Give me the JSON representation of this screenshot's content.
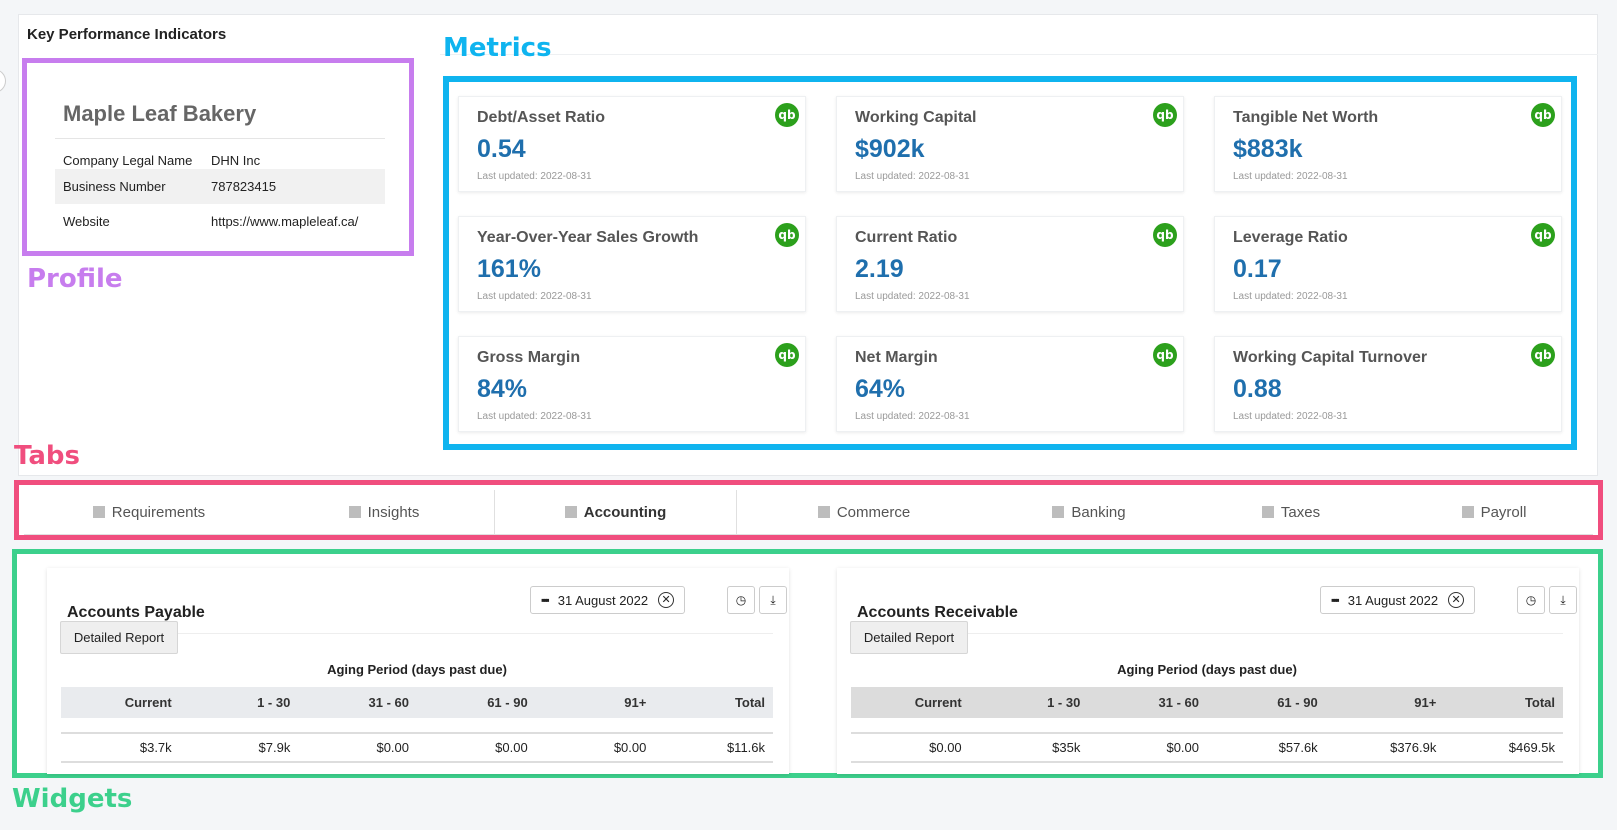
{
  "kpi_title": "Key Performance Indicators",
  "annotations": {
    "profile": "Profile",
    "metrics": "Metrics",
    "tabs": "Tabs",
    "widgets": "Widgets"
  },
  "profile": {
    "company_name": "Maple Leaf Bakery",
    "rows": [
      {
        "label": "Company Legal Name",
        "value": "DHN Inc"
      },
      {
        "label": "Business Number",
        "value": "787823415"
      },
      {
        "label": "Website",
        "value": "https://www.mapleleaf.ca/"
      }
    ]
  },
  "metrics": [
    {
      "label": "Debt/Asset Ratio",
      "value": "0.54",
      "updated": "Last updated: 2022-08-31",
      "icon": "quickbooks-icon"
    },
    {
      "label": "Working Capital",
      "value": "$902k",
      "updated": "Last updated: 2022-08-31",
      "icon": "quickbooks-icon"
    },
    {
      "label": "Tangible Net Worth",
      "value": "$883k",
      "updated": "Last updated: 2022-08-31",
      "icon": "quickbooks-icon"
    },
    {
      "label": "Year-Over-Year Sales Growth",
      "value": "161%",
      "updated": "Last updated: 2022-08-31",
      "icon": "quickbooks-icon"
    },
    {
      "label": "Current Ratio",
      "value": "2.19",
      "updated": "Last updated: 2022-08-31",
      "icon": "quickbooks-icon"
    },
    {
      "label": "Leverage Ratio",
      "value": "0.17",
      "updated": "Last updated: 2022-08-31",
      "icon": "quickbooks-icon"
    },
    {
      "label": "Gross Margin",
      "value": "84%",
      "updated": "Last updated: 2022-08-31",
      "icon": "quickbooks-icon"
    },
    {
      "label": "Net Margin",
      "value": "64%",
      "updated": "Last updated: 2022-08-31",
      "icon": "quickbooks-icon"
    },
    {
      "label": "Working Capital Turnover",
      "value": "0.88",
      "updated": "Last updated: 2022-08-31",
      "icon": "quickbooks-icon"
    }
  ],
  "qb_glyph": "qb",
  "tabs": [
    {
      "label": "Requirements"
    },
    {
      "label": "Insights"
    },
    {
      "label": "Accounting"
    },
    {
      "label": "Commerce"
    },
    {
      "label": "Banking"
    },
    {
      "label": "Taxes"
    },
    {
      "label": "Payroll"
    }
  ],
  "active_tab": "Accounting",
  "widgets": {
    "payable": {
      "title": "Accounts Payable",
      "date": "31 August 2022",
      "detailed_label": "Detailed Report",
      "aging_title": "Aging Period (days past due)",
      "headers": [
        "Current",
        "1 - 30",
        "31 - 60",
        "61 - 90",
        "91+",
        "Total"
      ],
      "values": [
        "$3.7k",
        "$7.9k",
        "$0.00",
        "$0.00",
        "$0.00",
        "$11.6k"
      ]
    },
    "receivable": {
      "title": "Accounts Receivable",
      "date": "31 August 2022",
      "detailed_label": "Detailed Report",
      "aging_title": "Aging Period (days past due)",
      "headers": [
        "Current",
        "1 - 30",
        "31 - 60",
        "61 - 90",
        "91+",
        "Total"
      ],
      "values": [
        "$0.00",
        "$35k",
        "$0.00",
        "$57.6k",
        "$376.9k",
        "$469.5k"
      ]
    }
  },
  "colors": {
    "profile_annotation": "#c77dee",
    "metrics_annotation": "#0fb4ef",
    "tabs_annotation": "#f04e7e",
    "widgets_annotation": "#3cd08c",
    "metric_value": "#1f6fad",
    "quickbooks_green": "#2ca01c"
  }
}
